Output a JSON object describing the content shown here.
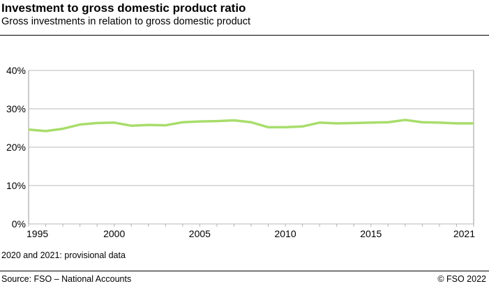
{
  "header": {
    "title": "Investment to gross domestic product ratio",
    "subtitle": "Gross investments in relation to gross domestic product"
  },
  "footer": {
    "note": "2020 and 2021: provisional data",
    "source": "Source: FSO – National Accounts",
    "copyright": "© FSO 2022"
  },
  "chart_data": {
    "type": "line",
    "title": "Investment to gross domestic product ratio",
    "subtitle": "Gross investments in relation to gross domestic product",
    "x": [
      1995,
      1996,
      1997,
      1998,
      1999,
      2000,
      2001,
      2002,
      2003,
      2004,
      2005,
      2006,
      2007,
      2008,
      2009,
      2010,
      2011,
      2012,
      2013,
      2014,
      2015,
      2016,
      2017,
      2018,
      2019,
      2020,
      2021
    ],
    "series": [
      {
        "values": [
          24.6,
          24.2,
          24.8,
          25.9,
          26.3,
          26.4,
          25.6,
          25.8,
          25.7,
          26.5,
          26.7,
          26.8,
          27.0,
          26.5,
          25.2,
          25.2,
          25.4,
          26.4,
          26.2,
          26.3,
          26.4,
          26.5,
          27.1,
          26.5,
          26.4,
          26.2,
          26.2
        ],
        "color": "#a8dd6c"
      }
    ],
    "xlim": [
      1995,
      2021
    ],
    "ylim": [
      0,
      40
    ],
    "xticks": [
      "1995",
      "2000",
      "2005",
      "2010",
      "2015",
      "2021"
    ],
    "yticks": [
      "0%",
      "10%",
      "20%",
      "30%",
      "40%"
    ],
    "grid": true,
    "legend": "none"
  }
}
